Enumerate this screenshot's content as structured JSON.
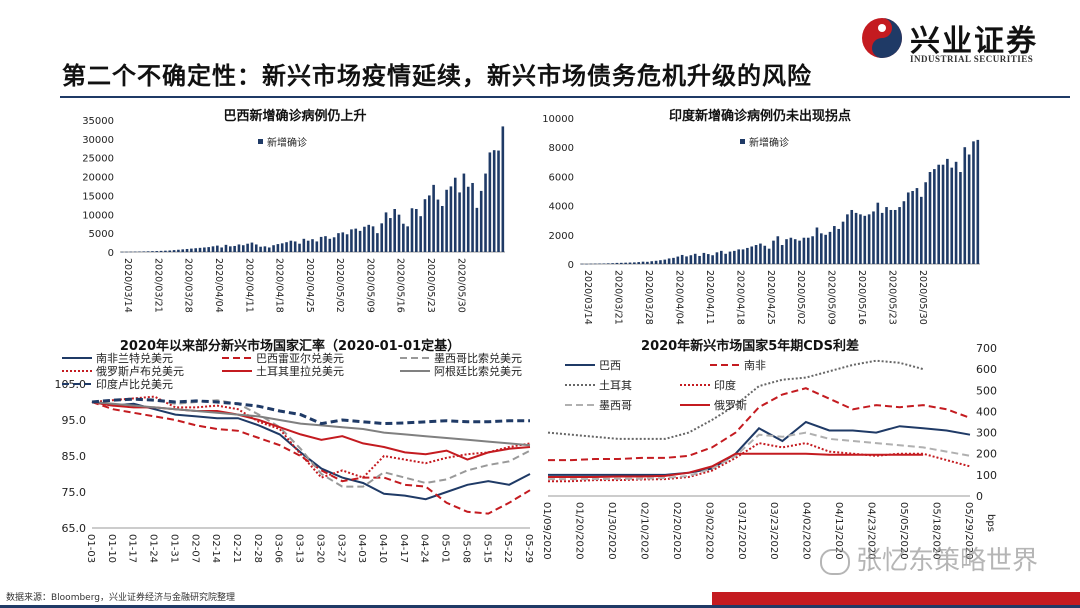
{
  "header": {
    "title": "第二个不确定性：新兴市场疫情延续，新兴市场债务危机升级的风险",
    "logo_cn": "兴业证券",
    "logo_en": "INDUSTRIAL SECURITIES"
  },
  "footer": {
    "source": "数据来源：Bloomberg，兴业证券经济与金融研究院整理",
    "watermark": "张忆东策略世界"
  },
  "colors": {
    "navy": "#1f3a66",
    "red": "#c41b20",
    "brand_red": "#c41b20",
    "brand_navy": "#1f3a66"
  },
  "chart_data": [
    {
      "type": "bar",
      "title": "巴西新增确诊病例仍上升",
      "legend": [
        "新增确诊"
      ],
      "legend_position": "top-left",
      "ylim": [
        0,
        35000
      ],
      "yticks": [
        "0",
        "5000",
        "10000",
        "15000",
        "20000",
        "25000",
        "30000",
        "35000"
      ],
      "xtick_labels": [
        "2020/03/14",
        "2020/03/21",
        "2020/03/28",
        "2020/04/04",
        "2020/04/11",
        "2020/04/18",
        "2020/04/25",
        "2020/05/02",
        "2020/05/09",
        "2020/05/16",
        "2020/05/23",
        "2020/05/30"
      ],
      "series": [
        {
          "name": "新增确诊",
          "values": [
            50,
            60,
            80,
            100,
            120,
            150,
            180,
            220,
            250,
            300,
            350,
            400,
            500,
            600,
            700,
            800,
            900,
            1000,
            1100,
            1200,
            1300,
            1500,
            1700,
            1200,
            1900,
            1500,
            1600,
            2000,
            1800,
            2200,
            2500,
            2000,
            1400,
            1500,
            1200,
            1800,
            2100,
            2300,
            2600,
            3000,
            2800,
            2200,
            3500,
            3000,
            3400,
            2800,
            4000,
            4200,
            3500,
            3900,
            5000,
            5200,
            4700,
            6000,
            6200,
            5600,
            6700,
            7200,
            6800,
            5000,
            7600,
            10500,
            9000,
            11400,
            9900,
            7500,
            6800,
            11600,
            11400,
            9500,
            14000,
            15000,
            17800,
            13900,
            12200,
            16500,
            17400,
            19700,
            15800,
            20800,
            17300,
            18300,
            11700,
            16200,
            20800,
            26400,
            27000,
            26900,
            33300
          ]
        }
      ]
    },
    {
      "type": "bar",
      "title": "印度新增确诊病例仍未出现拐点",
      "legend": [
        "新增确诊"
      ],
      "legend_position": "top-left",
      "ylim": [
        0,
        10000
      ],
      "yticks": [
        "0",
        "2000",
        "4000",
        "6000",
        "8000",
        "10000"
      ],
      "xtick_labels": [
        "2020/03/14",
        "2020/03/21",
        "2020/03/28",
        "2020/04/04",
        "2020/04/11",
        "2020/04/18",
        "2020/04/25",
        "2020/05/02",
        "2020/05/09",
        "2020/05/16",
        "2020/05/23",
        "2020/05/30"
      ],
      "series": [
        {
          "name": "新增确诊",
          "values": [
            15,
            10,
            20,
            25,
            30,
            35,
            45,
            55,
            75,
            80,
            90,
            100,
            110,
            130,
            160,
            150,
            190,
            220,
            260,
            300,
            380,
            420,
            510,
            620,
            520,
            600,
            700,
            550,
            760,
            680,
            600,
            800,
            900,
            700,
            850,
            900,
            1000,
            1000,
            1100,
            1200,
            1300,
            1400,
            1250,
            1050,
            1600,
            1900,
            1300,
            1700,
            1800,
            1700,
            1600,
            1800,
            1800,
            1900,
            2500,
            2100,
            2000,
            2200,
            2600,
            2400,
            2900,
            3400,
            3700,
            3500,
            3400,
            3300,
            3400,
            3600,
            4200,
            3500,
            3900,
            3700,
            3700,
            3900,
            4300,
            4900,
            5000,
            5200,
            4600,
            5600,
            6300,
            6500,
            6800,
            6800,
            7200,
            6600,
            7000,
            6300,
            8000,
            7500,
            8400,
            8500
          ]
        }
      ]
    },
    {
      "type": "line",
      "title": "2020年以来部分新兴市场国家汇率（2020-01-01定基）",
      "ylim": [
        65,
        105
      ],
      "yticks": [
        "65.0",
        "75.0",
        "85.0",
        "95.0",
        "105.0"
      ],
      "xtick_labels": [
        "01-03",
        "01-10",
        "01-17",
        "01-24",
        "01-31",
        "02-07",
        "02-14",
        "02-21",
        "02-28",
        "03-06",
        "03-13",
        "03-20",
        "03-27",
        "04-03",
        "04-10",
        "04-17",
        "04-24",
        "05-01",
        "05-08",
        "05-15",
        "05-22",
        "05-29"
      ],
      "legend_position": "top",
      "series": [
        {
          "name": "南非兰特兑美元",
          "color": "#1f3a66",
          "dash": "solid",
          "values": [
            100.0,
            99.0,
            99.5,
            98.0,
            96.5,
            96.0,
            95.5,
            95.5,
            93.5,
            91.0,
            86.0,
            81.5,
            79.0,
            77.5,
            74.5,
            74.0,
            73.0,
            75.0,
            77.0,
            78.0,
            77.0,
            80.0
          ]
        },
        {
          "name": "巴西雷亚尔兑美元",
          "color": "#c41b20",
          "dash": "dashed",
          "values": [
            100.0,
            98.0,
            97.0,
            96.0,
            95.0,
            93.5,
            92.5,
            92.0,
            90.0,
            88.0,
            85.0,
            81.0,
            78.0,
            79.0,
            79.0,
            77.0,
            76.5,
            72.0,
            69.5,
            69.0,
            72.0,
            75.5
          ]
        },
        {
          "name": "墨西哥比索兑美元",
          "color": "#999999",
          "dash": "dashed",
          "values": [
            100.0,
            100.5,
            101.0,
            100.5,
            99.5,
            100.0,
            100.5,
            99.5,
            96.5,
            93.0,
            87.0,
            80.0,
            76.5,
            76.5,
            80.5,
            79.0,
            77.5,
            78.5,
            81.0,
            82.5,
            83.5,
            86.5
          ]
        },
        {
          "name": "俄罗斯卢布兑美元",
          "color": "#c41b20",
          "dash": "dotted",
          "values": [
            100.0,
            100.5,
            101.0,
            101.5,
            98.5,
            98.5,
            99.0,
            98.0,
            94.5,
            92.5,
            85.5,
            79.0,
            81.0,
            79.0,
            85.0,
            84.0,
            83.0,
            84.5,
            85.5,
            86.0,
            87.5,
            88.5
          ]
        },
        {
          "name": "土耳其里拉兑美元",
          "color": "#c41b20",
          "dash": "solid",
          "values": [
            100.0,
            99.0,
            98.5,
            98.5,
            98.0,
            97.5,
            97.5,
            96.5,
            95.0,
            93.0,
            91.0,
            89.5,
            90.5,
            88.5,
            87.5,
            86.0,
            85.5,
            86.5,
            84.0,
            86.0,
            87.0,
            87.5
          ]
        },
        {
          "name": "阿根廷比索兑美元",
          "color": "#808080",
          "dash": "solid",
          "values": [
            100.0,
            99.5,
            99.0,
            98.5,
            98.0,
            97.5,
            97.0,
            96.5,
            96.0,
            95.0,
            94.0,
            93.5,
            93.0,
            92.5,
            91.5,
            91.0,
            90.5,
            90.0,
            89.5,
            89.0,
            88.5,
            88.0
          ]
        },
        {
          "name": "印度卢比兑美元",
          "color": "#1f3a66",
          "dash": "dashed",
          "values": [
            100.0,
            100.5,
            100.8,
            100.5,
            100.0,
            100.3,
            100.0,
            99.5,
            98.8,
            97.5,
            96.5,
            94.0,
            95.0,
            94.5,
            94.0,
            94.2,
            94.5,
            94.8,
            94.5,
            94.5,
            94.8,
            94.8
          ]
        }
      ]
    },
    {
      "type": "line",
      "title": "2020年新兴市场国家5年期CDS利差",
      "y_unit": "bps",
      "ylim": [
        0,
        700
      ],
      "yticks": [
        "0",
        "100",
        "200",
        "300",
        "400",
        "500",
        "600",
        "700"
      ],
      "xtick_labels": [
        "01/09/2020",
        "01/20/2020",
        "01/30/2020",
        "02/10/2020",
        "02/20/2020",
        "03/02/2020",
        "03/12/2020",
        "03/23/2020",
        "04/02/2020",
        "04/13/2020",
        "04/23/2020",
        "05/05/2020",
        "05/18/2020",
        "05/29/2020"
      ],
      "legend_position": "top-left",
      "series": [
        {
          "name": "巴西",
          "color": "#1f3a66",
          "dash": "solid",
          "values": [
            100,
            100,
            100,
            100,
            100,
            100,
            110,
            130,
            200,
            320,
            260,
            350,
            310,
            310,
            300,
            330,
            320,
            310,
            290
          ]
        },
        {
          "name": "南非",
          "color": "#c41b20",
          "dash": "dashed",
          "values": [
            170,
            170,
            175,
            175,
            180,
            180,
            190,
            230,
            300,
            420,
            480,
            510,
            460,
            410,
            430,
            420,
            430,
            410,
            370
          ]
        },
        {
          "name": "土耳其",
          "color": "#666666",
          "dash": "dotted",
          "values": [
            300,
            290,
            280,
            270,
            270,
            270,
            300,
            360,
            430,
            520,
            550,
            560,
            590,
            620,
            640,
            630,
            600,
            0,
            0
          ]
        },
        {
          "name": "印度",
          "color": "#c41b20",
          "dash": "dotted",
          "values": [
            70,
            70,
            75,
            75,
            78,
            80,
            90,
            120,
            180,
            250,
            230,
            250,
            210,
            200,
            190,
            200,
            200,
            170,
            140
          ]
        },
        {
          "name": "墨西哥",
          "color": "#b0b0b0",
          "dash": "dashed",
          "values": [
            80,
            80,
            80,
            82,
            82,
            85,
            95,
            130,
            190,
            290,
            280,
            300,
            270,
            260,
            250,
            240,
            230,
            210,
            190
          ]
        },
        {
          "name": "俄罗斯",
          "color": "#c41b20",
          "dash": "solid",
          "values": [
            90,
            90,
            90,
            92,
            92,
            95,
            110,
            140,
            200,
            200,
            200,
            200,
            195,
            195,
            195,
            195,
            195,
            0,
            0
          ]
        }
      ]
    }
  ]
}
